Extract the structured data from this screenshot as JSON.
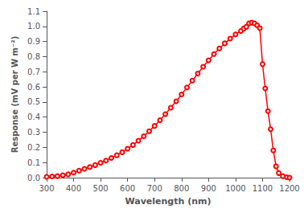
{
  "chart_data": {
    "type": "line",
    "xlabel": "Wavelength (nm)",
    "ylabel": "Response (mV per W m⁻²)",
    "x": [
      300,
      320,
      340,
      360,
      380,
      400,
      420,
      440,
      460,
      480,
      500,
      520,
      540,
      560,
      580,
      600,
      620,
      640,
      660,
      680,
      700,
      720,
      740,
      760,
      780,
      800,
      820,
      840,
      860,
      880,
      900,
      920,
      940,
      960,
      980,
      1000,
      1020,
      1030,
      1040,
      1050,
      1060,
      1070,
      1080,
      1090,
      1100,
      1110,
      1120,
      1130,
      1140,
      1150,
      1160,
      1175,
      1190,
      1200
    ],
    "values": [
      0.005,
      0.008,
      0.01,
      0.016,
      0.022,
      0.033,
      0.046,
      0.058,
      0.07,
      0.083,
      0.098,
      0.113,
      0.13,
      0.148,
      0.168,
      0.191,
      0.216,
      0.244,
      0.274,
      0.307,
      0.342,
      0.38,
      0.42,
      0.462,
      0.505,
      0.55,
      0.596,
      0.642,
      0.688,
      0.733,
      0.776,
      0.817,
      0.854,
      0.888,
      0.919,
      0.947,
      0.97,
      0.985,
      0.997,
      1.02,
      1.025,
      1.02,
      1.007,
      0.988,
      0.75,
      0.59,
      0.44,
      0.32,
      0.18,
      0.075,
      0.03,
      0.01,
      0.003,
      0.0
    ],
    "color": "#ff0000",
    "marker": "circle",
    "xlim": [
      300,
      1200
    ],
    "ylim": [
      0,
      1.1
    ],
    "xticks": [
      300,
      400,
      500,
      600,
      700,
      800,
      900,
      1000,
      1100,
      1200
    ],
    "yticks": [
      {
        "value": 0,
        "label": "0.0"
      },
      0.1,
      0.2,
      0.3,
      0.4,
      0.5,
      0.6,
      0.7,
      0.8,
      0.9,
      {
        "value": 1,
        "label": "1.0"
      },
      1.1
    ],
    "grid": false
  }
}
